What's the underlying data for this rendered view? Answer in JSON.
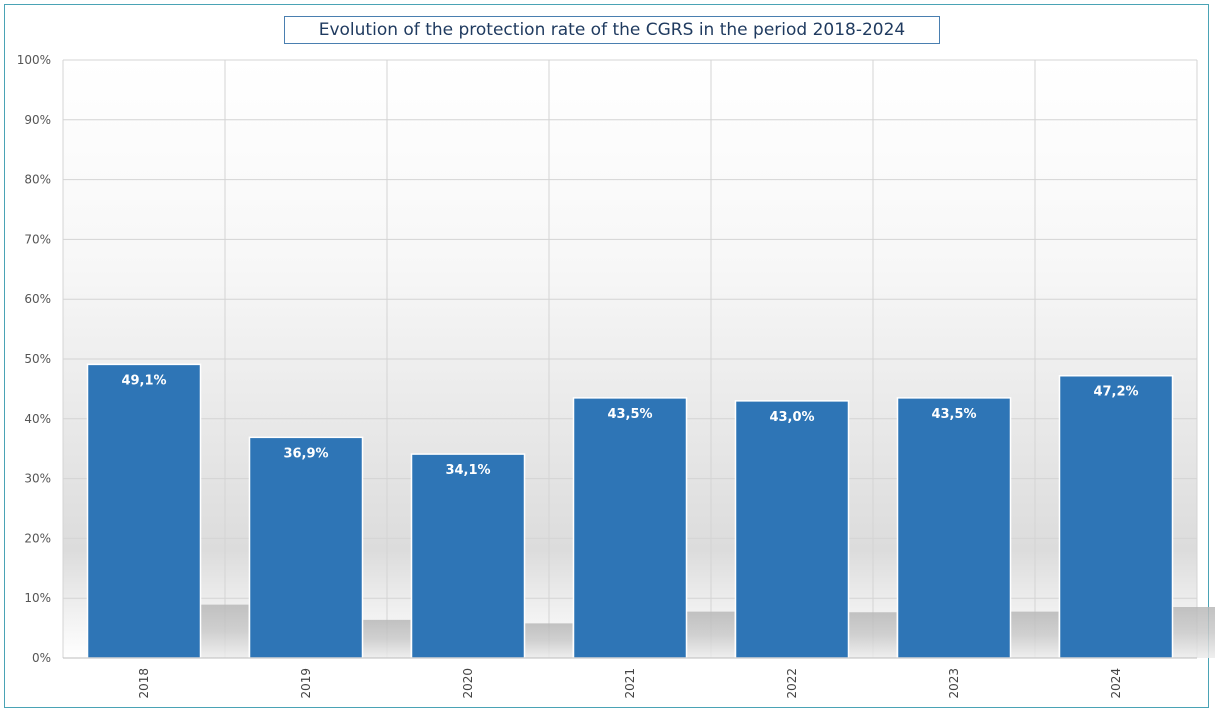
{
  "chart_data": {
    "type": "bar",
    "title": "Evolution of the protection rate of the CGRS in the period 2018-2024",
    "categories": [
      "2018",
      "2019",
      "2020",
      "2021",
      "2022",
      "2023",
      "2024"
    ],
    "values": [
      49.1,
      36.9,
      34.1,
      43.5,
      43.0,
      43.5,
      47.2
    ],
    "data_labels": [
      "49,1%",
      "36,9%",
      "34,1%",
      "43,5%",
      "43,0%",
      "43,5%",
      "47,2%"
    ],
    "xlabel": "",
    "ylabel": "",
    "ylim": [
      0,
      100
    ],
    "y_ticks": [
      "0%",
      "10%",
      "20%",
      "30%",
      "40%",
      "50%",
      "60%",
      "70%",
      "80%",
      "90%",
      "100%"
    ],
    "grid": true,
    "bar_color": "#2e75b6"
  }
}
